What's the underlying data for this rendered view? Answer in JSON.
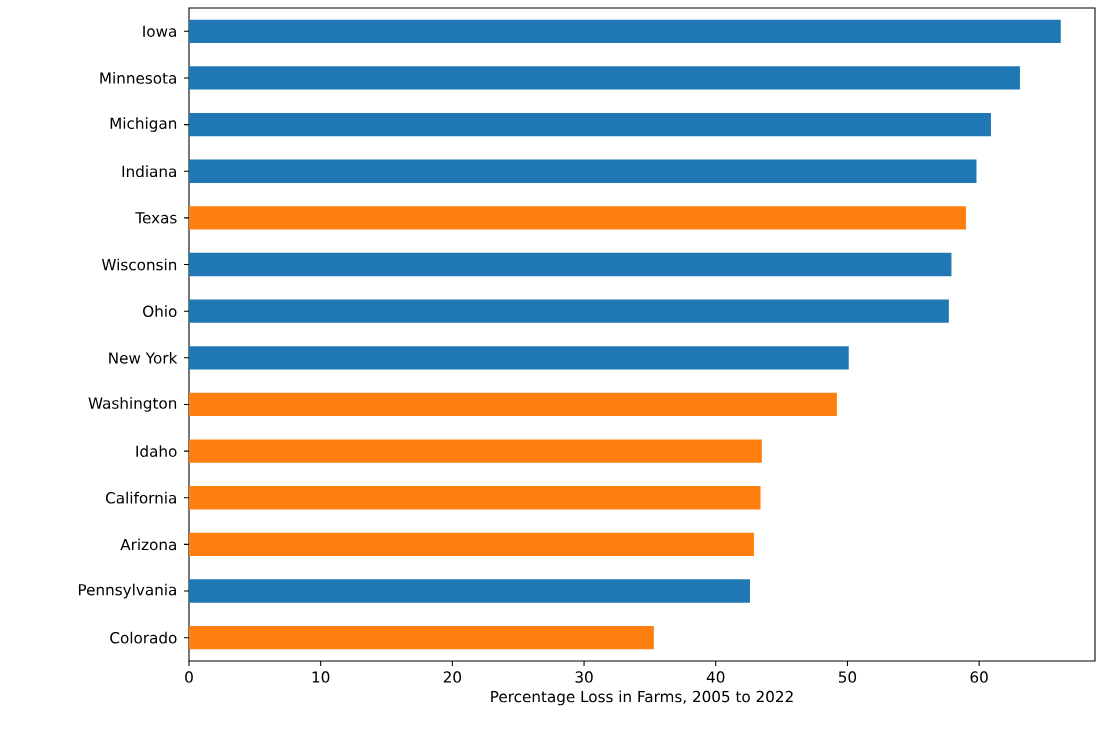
{
  "chart_data": {
    "type": "bar",
    "orientation": "horizontal",
    "xlabel": "Percentage Loss in Farms, 2005 to 2022",
    "categories": [
      "Iowa",
      "Minnesota",
      "Michigan",
      "Indiana",
      "Texas",
      "Wisconsin",
      "Ohio",
      "New York",
      "Washington",
      "Idaho",
      "California",
      "Arizona",
      "Pennsylvania",
      "Colorado"
    ],
    "values": [
      66.2,
      63.1,
      60.9,
      59.8,
      59.0,
      57.9,
      57.7,
      50.1,
      49.2,
      43.5,
      43.4,
      42.9,
      42.6,
      35.3
    ],
    "colors": [
      "#1f77b4",
      "#1f77b4",
      "#1f77b4",
      "#1f77b4",
      "#ff7f0e",
      "#1f77b4",
      "#1f77b4",
      "#1f77b4",
      "#ff7f0e",
      "#ff7f0e",
      "#ff7f0e",
      "#ff7f0e",
      "#1f77b4",
      "#ff7f0e"
    ],
    "xlim": [
      0,
      68.8
    ],
    "xticks": [
      0,
      10,
      20,
      30,
      40,
      50,
      60
    ]
  }
}
